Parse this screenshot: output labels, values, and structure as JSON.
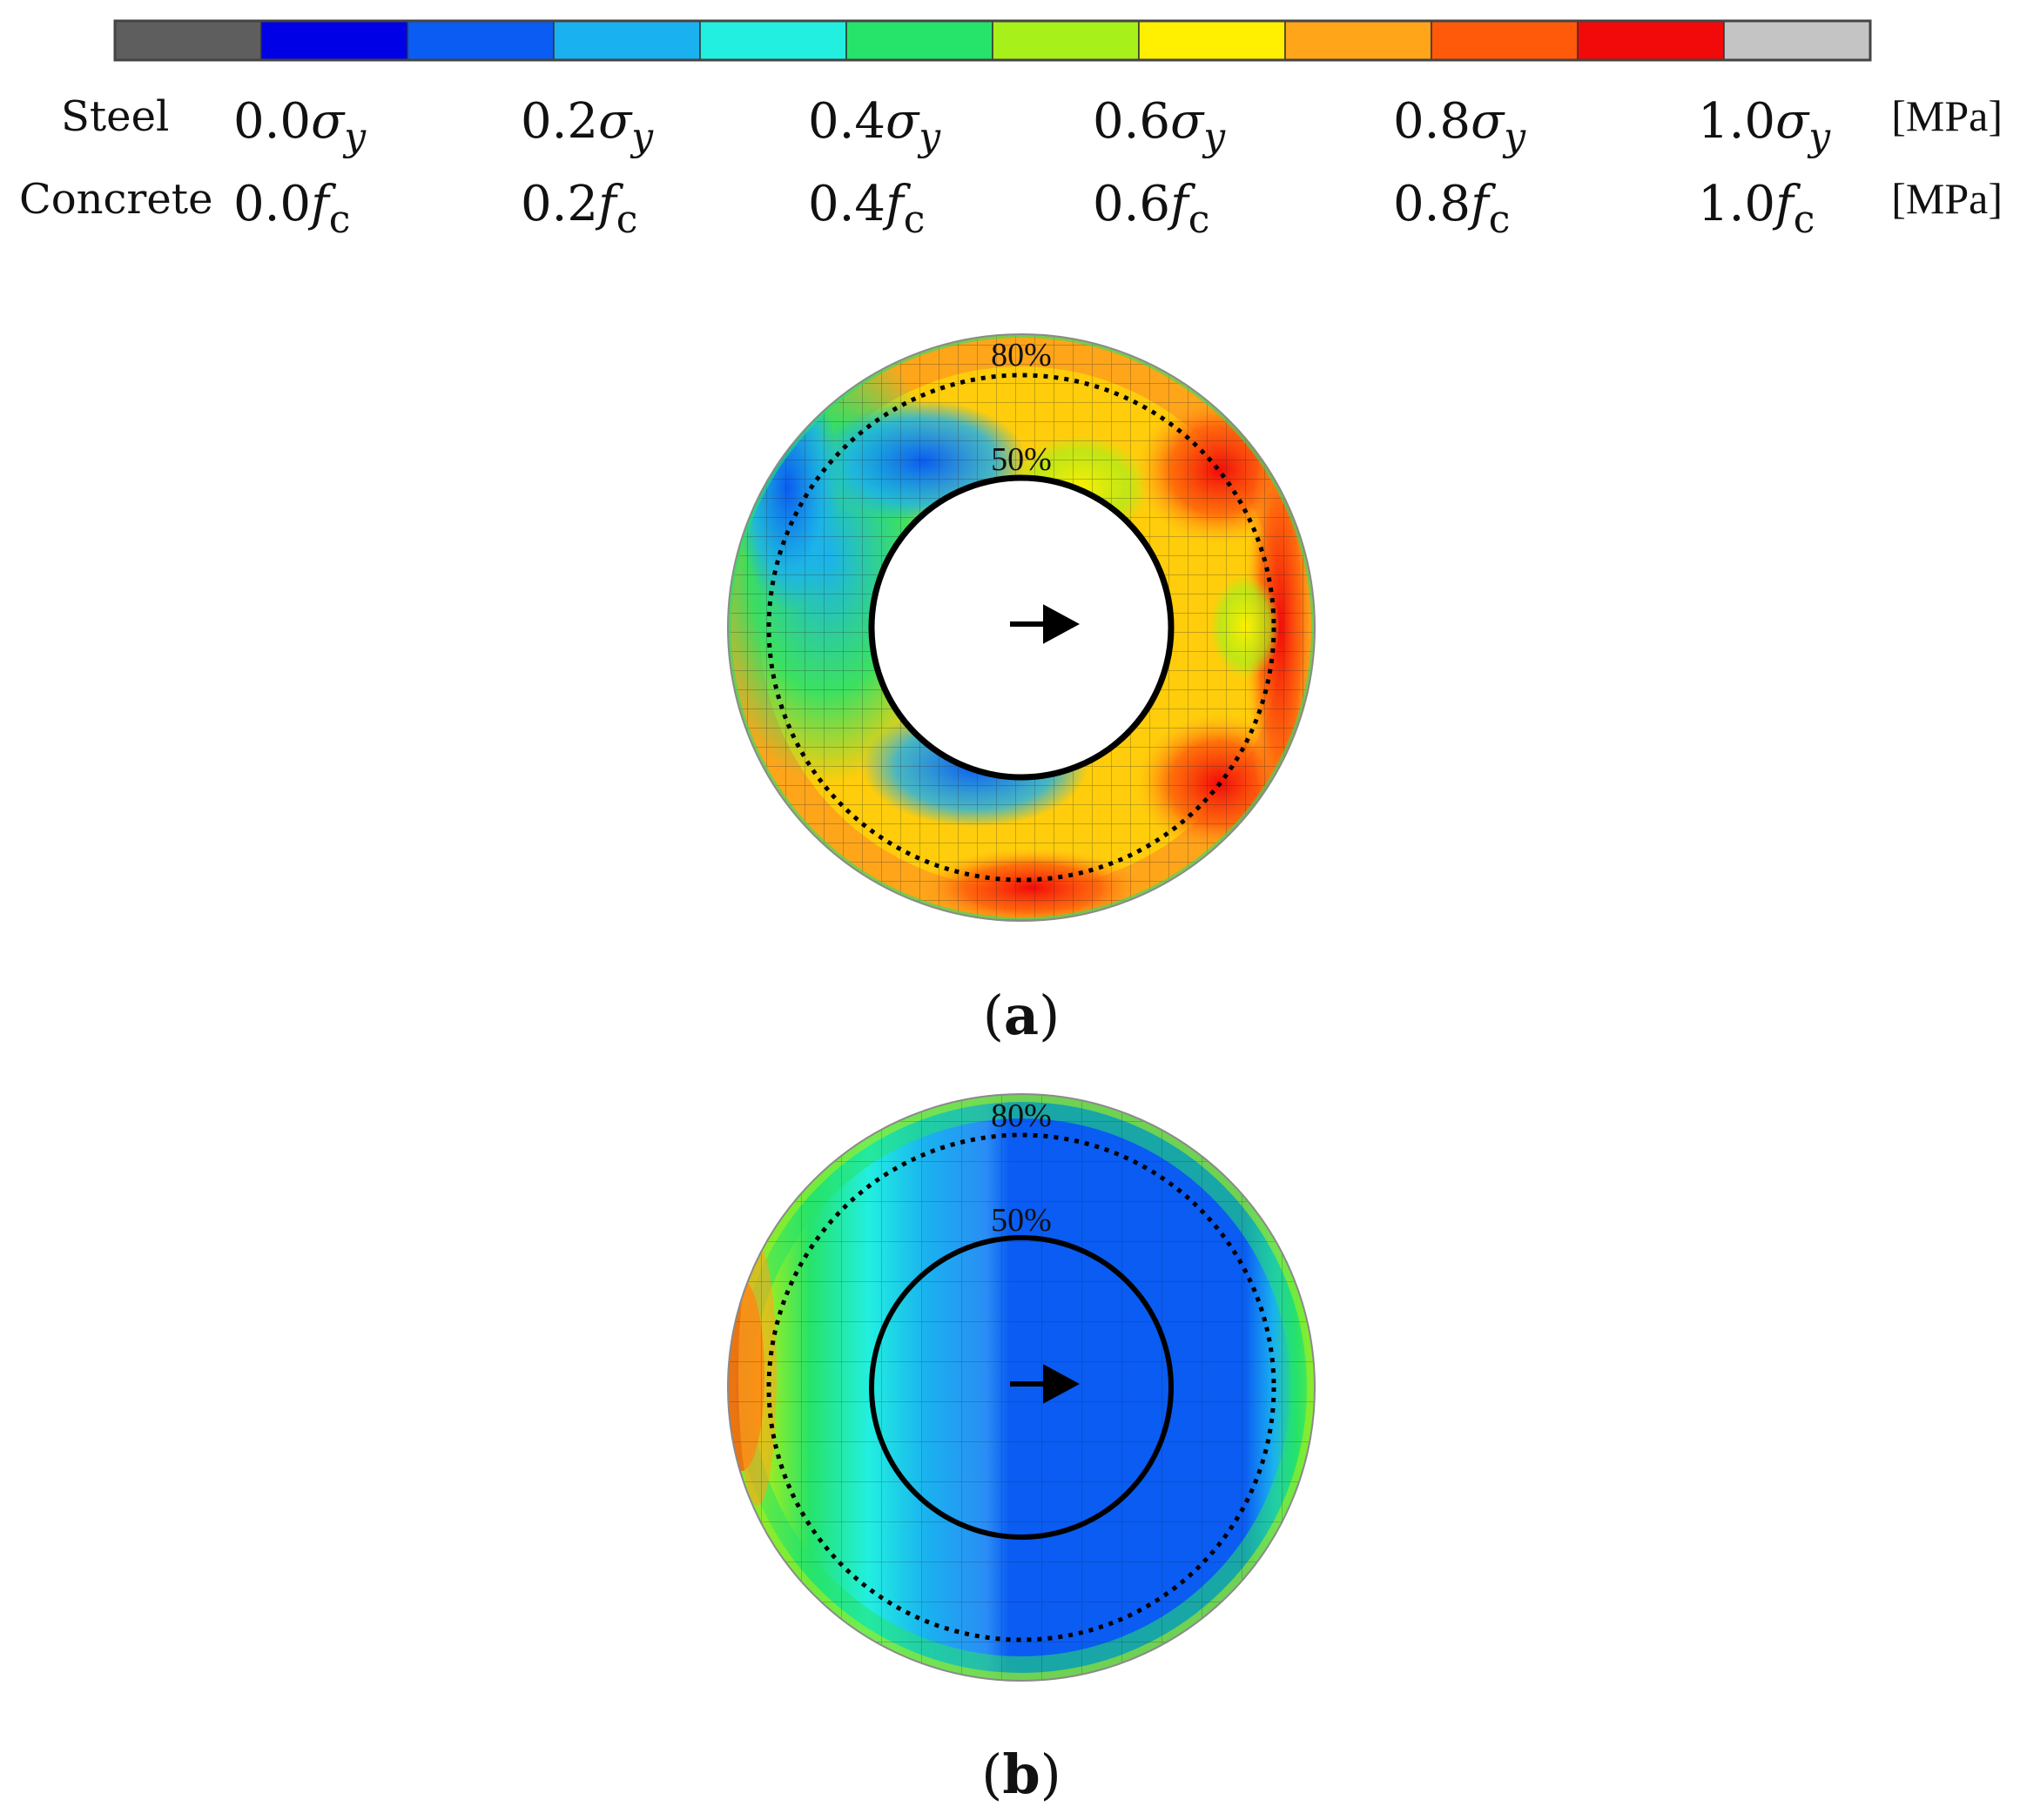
{
  "legend": {
    "colors": [
      "#5e5e5e",
      "#0000e6",
      "#0a5cf2",
      "#1ab1f0",
      "#22efe0",
      "#26e36a",
      "#a8f01a",
      "#ffef00",
      "#ffa51a",
      "#ff5a0a",
      "#f20a0a",
      "#c4c4c4"
    ],
    "rows": [
      {
        "name": "Steel",
        "ticks": [
          "0.0σy",
          "0.2σy",
          "0.4σy",
          "0.6σy",
          "0.8σy",
          "1.0σy"
        ],
        "unit": "[MPa]"
      },
      {
        "name": "Concrete",
        "ticks": [
          "0.0fc",
          "0.2fc",
          "0.4fc",
          "0.6fc",
          "0.8fc",
          "1.0fc"
        ],
        "unit": "[MPa]"
      }
    ]
  },
  "panels": [
    {
      "caption_open": "(",
      "caption_letter": "a",
      "caption_close": ")",
      "outer_label": "80%",
      "inner_label": "50%",
      "inner_hollow": true
    },
    {
      "caption_open": "(",
      "caption_letter": "b",
      "caption_close": ")",
      "outer_label": "80%",
      "inner_label": "50%",
      "inner_hollow": false
    }
  ]
}
